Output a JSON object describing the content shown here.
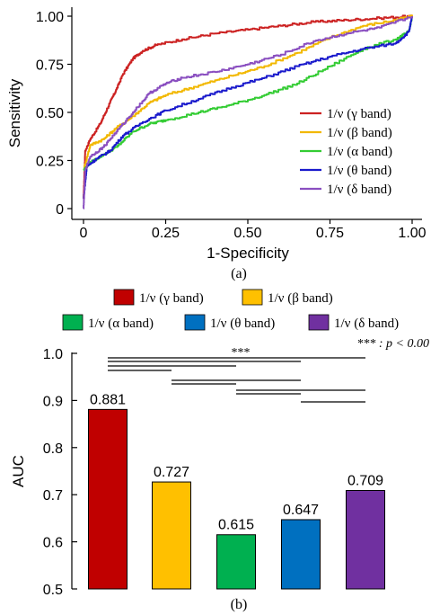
{
  "chart_data": [
    {
      "type": "line",
      "panel_label": "(a)",
      "xlabel": "1-Specificity",
      "ylabel": "Sensitivity",
      "xlim": [
        0,
        1
      ],
      "ylim": [
        0,
        1
      ],
      "xticks": [
        "0",
        "0.25",
        "0.50",
        "0.75",
        "1.00"
      ],
      "yticks": [
        "0",
        "0.25",
        "0.50",
        "0.75",
        "1.00"
      ],
      "legend_position": "bottom-right",
      "series": [
        {
          "name": "1/ν (γ band)",
          "color": "#cc2222",
          "points": [
            [
              0,
              0.05
            ],
            [
              0.005,
              0.3
            ],
            [
              0.02,
              0.36
            ],
            [
              0.05,
              0.44
            ],
            [
              0.08,
              0.55
            ],
            [
              0.1,
              0.62
            ],
            [
              0.12,
              0.7
            ],
            [
              0.15,
              0.78
            ],
            [
              0.18,
              0.82
            ],
            [
              0.22,
              0.85
            ],
            [
              0.3,
              0.88
            ],
            [
              0.4,
              0.91
            ],
            [
              0.5,
              0.93
            ],
            [
              0.6,
              0.95
            ],
            [
              0.7,
              0.97
            ],
            [
              0.8,
              0.98
            ],
            [
              0.9,
              0.99
            ],
            [
              1.0,
              1.0
            ]
          ]
        },
        {
          "name": "1/ν (β band)",
          "color": "#f2b800",
          "points": [
            [
              0,
              0.2
            ],
            [
              0.02,
              0.33
            ],
            [
              0.06,
              0.36
            ],
            [
              0.1,
              0.42
            ],
            [
              0.15,
              0.48
            ],
            [
              0.2,
              0.55
            ],
            [
              0.25,
              0.59
            ],
            [
              0.35,
              0.64
            ],
            [
              0.45,
              0.69
            ],
            [
              0.55,
              0.74
            ],
            [
              0.65,
              0.81
            ],
            [
              0.75,
              0.89
            ],
            [
              0.85,
              0.95
            ],
            [
              0.95,
              0.98
            ],
            [
              1.0,
              1.0
            ]
          ]
        },
        {
          "name": "1/ν (α band)",
          "color": "#33cc33",
          "points": [
            [
              0,
              0.2
            ],
            [
              0.02,
              0.24
            ],
            [
              0.06,
              0.28
            ],
            [
              0.1,
              0.32
            ],
            [
              0.15,
              0.4
            ],
            [
              0.2,
              0.44
            ],
            [
              0.25,
              0.46
            ],
            [
              0.35,
              0.5
            ],
            [
              0.45,
              0.54
            ],
            [
              0.55,
              0.59
            ],
            [
              0.65,
              0.65
            ],
            [
              0.75,
              0.74
            ],
            [
              0.85,
              0.83
            ],
            [
              0.95,
              0.88
            ],
            [
              0.99,
              0.92
            ],
            [
              1.0,
              1.0
            ]
          ]
        },
        {
          "name": "1/ν (θ band)",
          "color": "#1a1acc",
          "points": [
            [
              0,
              0.05
            ],
            [
              0.01,
              0.22
            ],
            [
              0.04,
              0.26
            ],
            [
              0.08,
              0.3
            ],
            [
              0.12,
              0.38
            ],
            [
              0.18,
              0.45
            ],
            [
              0.25,
              0.51
            ],
            [
              0.35,
              0.57
            ],
            [
              0.45,
              0.63
            ],
            [
              0.55,
              0.68
            ],
            [
              0.65,
              0.74
            ],
            [
              0.75,
              0.79
            ],
            [
              0.85,
              0.83
            ],
            [
              0.95,
              0.86
            ],
            [
              0.99,
              0.92
            ],
            [
              1.0,
              1.0
            ]
          ]
        },
        {
          "name": "1/ν (δ band)",
          "color": "#8a4fc0",
          "points": [
            [
              0,
              0.0
            ],
            [
              0.005,
              0.2
            ],
            [
              0.02,
              0.27
            ],
            [
              0.06,
              0.32
            ],
            [
              0.1,
              0.4
            ],
            [
              0.15,
              0.5
            ],
            [
              0.2,
              0.6
            ],
            [
              0.25,
              0.65
            ],
            [
              0.3,
              0.68
            ],
            [
              0.4,
              0.71
            ],
            [
              0.5,
              0.75
            ],
            [
              0.6,
              0.8
            ],
            [
              0.7,
              0.87
            ],
            [
              0.8,
              0.91
            ],
            [
              0.9,
              0.94
            ],
            [
              1.0,
              1.0
            ]
          ]
        }
      ]
    },
    {
      "type": "bar",
      "panel_label": "(b)",
      "ylabel": "AUC",
      "ylim": [
        0.5,
        1.0
      ],
      "yticks": [
        "0.5",
        "0.6",
        "0.7",
        "0.8",
        "0.9",
        "1.0"
      ],
      "categories": [
        "1/ν (γ band)",
        "1/ν (β band)",
        "1/ν (α band)",
        "1/ν (θ band)",
        "1/ν (δ band)"
      ],
      "values": [
        0.881,
        0.727,
        0.615,
        0.647,
        0.709
      ],
      "value_labels": [
        "0.881",
        "0.727",
        "0.615",
        "0.647",
        "0.709"
      ],
      "colors": [
        "#c00000",
        "#ffc000",
        "#00b050",
        "#0070c0",
        "#7030a0"
      ],
      "legend_position": "top",
      "significance_label": "***",
      "significance_note": "*** : p < 0.00",
      "comparisons": [
        [
          0,
          4
        ],
        [
          0,
          3
        ],
        [
          0,
          2
        ],
        [
          0,
          1
        ],
        [
          1,
          3
        ],
        [
          1,
          2
        ],
        [
          2,
          4
        ],
        [
          2,
          3
        ],
        [
          3,
          4
        ]
      ]
    }
  ]
}
